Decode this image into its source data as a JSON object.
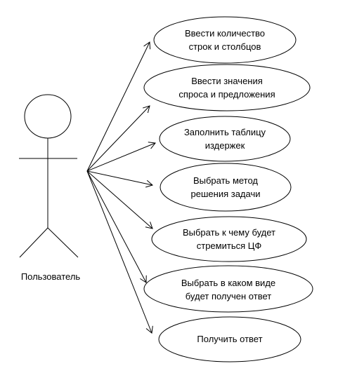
{
  "diagram": {
    "type": "use-case",
    "actor": {
      "label": "Пользователь"
    },
    "use_cases": [
      {
        "line1": "Ввести количество",
        "line2": "строк и столбцов"
      },
      {
        "line1": "Ввести значения",
        "line2": "спроса и предложения"
      },
      {
        "line1": "Заполнить таблицу",
        "line2": "издержек"
      },
      {
        "line1": "Выбрать метод",
        "line2": "решения задачи"
      },
      {
        "line1": "Выбрать к чему будет",
        "line2": "стремиться ЦФ"
      },
      {
        "line1": "Выбрать в каком виде",
        "line2": "будет получен ответ"
      },
      {
        "line1": "Получить ответ",
        "line2": ""
      }
    ],
    "colors": {
      "stroke": "#000000",
      "fill": "#ffffff"
    }
  }
}
